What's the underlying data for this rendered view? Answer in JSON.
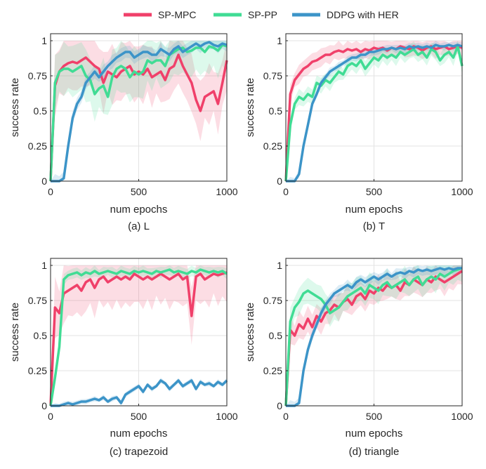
{
  "legend": {
    "placement": "top-center",
    "entries": [
      {
        "name": "SP-MPC",
        "color": "#f0406a"
      },
      {
        "name": "SP-PP",
        "color": "#40dc94"
      },
      {
        "name": "DDPG with HER",
        "color": "#3c94c8"
      }
    ]
  },
  "chart_data": [
    {
      "type": "line",
      "title": "(a) L",
      "xlabel": "num epochs",
      "ylabel": "success rate",
      "xlim": [
        0,
        1000
      ],
      "ylim": [
        0,
        1.05
      ],
      "xticks": [
        "0",
        "500",
        "1000"
      ],
      "yticks": [
        "0",
        "0.25",
        "0.5",
        "0.75",
        "1"
      ],
      "grid": true,
      "x": [
        0,
        25,
        50,
        75,
        100,
        125,
        150,
        175,
        200,
        225,
        250,
        275,
        300,
        325,
        350,
        375,
        400,
        425,
        450,
        475,
        500,
        525,
        550,
        575,
        600,
        625,
        650,
        675,
        700,
        725,
        750,
        775,
        800,
        825,
        850,
        875,
        900,
        925,
        950,
        975,
        1000
      ],
      "series": [
        {
          "name": "SP-MPC",
          "values": [
            0,
            0.68,
            0.78,
            0.82,
            0.84,
            0.85,
            0.84,
            0.86,
            0.88,
            0.85,
            0.82,
            0.8,
            0.7,
            0.78,
            0.76,
            0.74,
            0.78,
            0.8,
            0.82,
            0.76,
            0.78,
            0.76,
            0.8,
            0.74,
            0.76,
            0.78,
            0.72,
            0.8,
            0.82,
            0.9,
            0.82,
            0.76,
            0.7,
            0.58,
            0.5,
            0.6,
            0.62,
            0.64,
            0.55,
            0.7,
            0.86
          ]
        },
        {
          "name": "SP-PP",
          "values": [
            0,
            0.7,
            0.78,
            0.8,
            0.8,
            0.78,
            0.8,
            0.82,
            0.75,
            0.72,
            0.62,
            0.66,
            0.68,
            0.6,
            0.74,
            0.8,
            0.82,
            0.8,
            0.74,
            0.78,
            0.76,
            0.78,
            0.86,
            0.84,
            0.86,
            0.86,
            0.82,
            0.9,
            0.92,
            0.94,
            0.95,
            0.92,
            0.93,
            0.95,
            0.95,
            0.92,
            0.96,
            0.95,
            0.93,
            0.97,
            0.96
          ]
        },
        {
          "name": "DDPG with HER",
          "values": [
            0,
            0,
            0,
            0.02,
            0.25,
            0.45,
            0.55,
            0.6,
            0.7,
            0.74,
            0.78,
            0.74,
            0.78,
            0.82,
            0.85,
            0.88,
            0.9,
            0.92,
            0.92,
            0.88,
            0.9,
            0.92,
            0.92,
            0.9,
            0.9,
            0.94,
            0.92,
            0.9,
            0.94,
            0.96,
            0.92,
            0.94,
            0.96,
            0.98,
            0.96,
            0.98,
            0.99,
            0.97,
            0.96,
            0.98,
            0.97
          ]
        }
      ]
    },
    {
      "type": "line",
      "title": "(b) T",
      "xlabel": "num epochs",
      "ylabel": "success rate",
      "xlim": [
        0,
        1000
      ],
      "ylim": [
        0,
        1.05
      ],
      "xticks": [
        "0",
        "500",
        "1000"
      ],
      "yticks": [
        "0",
        "0.25",
        "0.5",
        "0.75",
        "1"
      ],
      "grid": true,
      "x": [
        0,
        25,
        50,
        75,
        100,
        125,
        150,
        175,
        200,
        225,
        250,
        275,
        300,
        325,
        350,
        375,
        400,
        425,
        450,
        475,
        500,
        525,
        550,
        575,
        600,
        625,
        650,
        675,
        700,
        725,
        750,
        775,
        800,
        825,
        850,
        875,
        900,
        925,
        950,
        975,
        1000
      ],
      "series": [
        {
          "name": "SP-MPC",
          "values": [
            0,
            0.62,
            0.72,
            0.76,
            0.8,
            0.82,
            0.85,
            0.86,
            0.88,
            0.9,
            0.9,
            0.92,
            0.93,
            0.92,
            0.94,
            0.93,
            0.94,
            0.92,
            0.94,
            0.93,
            0.95,
            0.94,
            0.95,
            0.93,
            0.95,
            0.94,
            0.96,
            0.95,
            0.94,
            0.96,
            0.95,
            0.93,
            0.95,
            0.96,
            0.94,
            0.95,
            0.96,
            0.94,
            0.95,
            0.96,
            0.95
          ]
        },
        {
          "name": "SP-PP",
          "values": [
            0,
            0.4,
            0.55,
            0.6,
            0.58,
            0.62,
            0.6,
            0.7,
            0.68,
            0.72,
            0.7,
            0.74,
            0.78,
            0.76,
            0.82,
            0.84,
            0.82,
            0.86,
            0.8,
            0.84,
            0.88,
            0.86,
            0.9,
            0.88,
            0.9,
            0.88,
            0.92,
            0.9,
            0.92,
            0.94,
            0.9,
            0.92,
            0.88,
            0.94,
            0.92,
            0.86,
            0.9,
            0.92,
            0.88,
            0.96,
            0.82
          ]
        },
        {
          "name": "DDPG with HER",
          "values": [
            0,
            0,
            0,
            0.05,
            0.25,
            0.4,
            0.55,
            0.62,
            0.7,
            0.74,
            0.78,
            0.8,
            0.82,
            0.84,
            0.86,
            0.88,
            0.88,
            0.9,
            0.9,
            0.92,
            0.92,
            0.93,
            0.94,
            0.94,
            0.95,
            0.94,
            0.95,
            0.94,
            0.96,
            0.95,
            0.96,
            0.95,
            0.96,
            0.95,
            0.97,
            0.96,
            0.96,
            0.97,
            0.96,
            0.97,
            0.96
          ]
        }
      ]
    },
    {
      "type": "line",
      "title": "(c) trapezoid",
      "xlabel": "num epochs",
      "ylabel": "success rate",
      "xlim": [
        0,
        1000
      ],
      "ylim": [
        0,
        1.05
      ],
      "xticks": [
        "0",
        "500",
        "1000"
      ],
      "yticks": [
        "0",
        "0.25",
        "0.5",
        "0.75",
        "1"
      ],
      "grid": true,
      "x": [
        0,
        25,
        50,
        75,
        100,
        125,
        150,
        175,
        200,
        225,
        250,
        275,
        300,
        325,
        350,
        375,
        400,
        425,
        450,
        475,
        500,
        525,
        550,
        575,
        600,
        625,
        650,
        675,
        700,
        725,
        750,
        775,
        800,
        825,
        850,
        875,
        900,
        925,
        950,
        975,
        1000
      ],
      "series": [
        {
          "name": "SP-MPC",
          "values": [
            0,
            0.7,
            0.66,
            0.8,
            0.82,
            0.84,
            0.86,
            0.82,
            0.88,
            0.9,
            0.84,
            0.9,
            0.92,
            0.88,
            0.9,
            0.92,
            0.9,
            0.92,
            0.9,
            0.94,
            0.92,
            0.9,
            0.92,
            0.9,
            0.92,
            0.94,
            0.92,
            0.9,
            0.92,
            0.94,
            0.9,
            0.92,
            0.64,
            0.92,
            0.94,
            0.9,
            0.92,
            0.94,
            0.93,
            0.94,
            0.95
          ]
        },
        {
          "name": "SP-PP",
          "values": [
            0,
            0.2,
            0.42,
            0.9,
            0.93,
            0.94,
            0.95,
            0.93,
            0.95,
            0.94,
            0.96,
            0.94,
            0.95,
            0.96,
            0.95,
            0.94,
            0.96,
            0.95,
            0.94,
            0.96,
            0.95,
            0.96,
            0.95,
            0.94,
            0.96,
            0.95,
            0.96,
            0.97,
            0.95,
            0.96,
            0.95,
            0.94,
            0.96,
            0.95,
            0.97,
            0.96,
            0.95,
            0.96,
            0.95,
            0.96,
            0.94
          ]
        },
        {
          "name": "DDPG with HER",
          "values": [
            0,
            0,
            0,
            0.01,
            0.02,
            0.01,
            0.02,
            0.03,
            0.03,
            0.04,
            0.05,
            0.04,
            0.06,
            0.03,
            0.05,
            0.06,
            0.02,
            0.08,
            0.1,
            0.12,
            0.14,
            0.1,
            0.15,
            0.12,
            0.14,
            0.18,
            0.16,
            0.12,
            0.15,
            0.18,
            0.14,
            0.16,
            0.18,
            0.12,
            0.17,
            0.15,
            0.16,
            0.14,
            0.17,
            0.15,
            0.18
          ]
        }
      ]
    },
    {
      "type": "line",
      "title": "(d) triangle",
      "xlabel": "num epochs",
      "ylabel": "success rate",
      "xlim": [
        0,
        1000
      ],
      "ylim": [
        0,
        1.05
      ],
      "xticks": [
        "0",
        "500",
        "1000"
      ],
      "yticks": [
        "0",
        "0.25",
        "0.5",
        "0.75",
        "1"
      ],
      "grid": true,
      "x": [
        0,
        25,
        50,
        75,
        100,
        125,
        150,
        175,
        200,
        225,
        250,
        275,
        300,
        325,
        350,
        375,
        400,
        425,
        450,
        475,
        500,
        525,
        550,
        575,
        600,
        625,
        650,
        675,
        700,
        725,
        750,
        775,
        800,
        825,
        850,
        875,
        900,
        925,
        950,
        975,
        1000
      ],
      "series": [
        {
          "name": "SP-MPC",
          "values": [
            0,
            0.54,
            0.5,
            0.58,
            0.55,
            0.62,
            0.56,
            0.64,
            0.6,
            0.66,
            0.68,
            0.72,
            0.7,
            0.74,
            0.76,
            0.72,
            0.78,
            0.8,
            0.76,
            0.82,
            0.8,
            0.84,
            0.82,
            0.86,
            0.84,
            0.86,
            0.82,
            0.88,
            0.86,
            0.9,
            0.88,
            0.86,
            0.9,
            0.88,
            0.92,
            0.9,
            0.88,
            0.9,
            0.92,
            0.94,
            0.96
          ]
        },
        {
          "name": "SP-PP",
          "values": [
            0,
            0.6,
            0.7,
            0.74,
            0.8,
            0.82,
            0.8,
            0.78,
            0.76,
            0.72,
            0.66,
            0.68,
            0.7,
            0.74,
            0.78,
            0.8,
            0.82,
            0.84,
            0.8,
            0.86,
            0.84,
            0.82,
            0.86,
            0.88,
            0.84,
            0.86,
            0.88,
            0.9,
            0.86,
            0.9,
            0.92,
            0.86,
            0.9,
            0.92,
            0.9,
            0.94,
            0.92,
            0.94,
            0.96,
            0.97,
            0.98
          ]
        },
        {
          "name": "DDPG with HER",
          "values": [
            0,
            0,
            0,
            0.02,
            0.25,
            0.4,
            0.5,
            0.58,
            0.66,
            0.72,
            0.76,
            0.8,
            0.82,
            0.84,
            0.86,
            0.84,
            0.88,
            0.9,
            0.88,
            0.9,
            0.92,
            0.9,
            0.92,
            0.94,
            0.92,
            0.94,
            0.95,
            0.94,
            0.96,
            0.95,
            0.97,
            0.96,
            0.97,
            0.96,
            0.97,
            0.98,
            0.97,
            0.98,
            0.97,
            0.98,
            0.98
          ]
        }
      ]
    }
  ]
}
